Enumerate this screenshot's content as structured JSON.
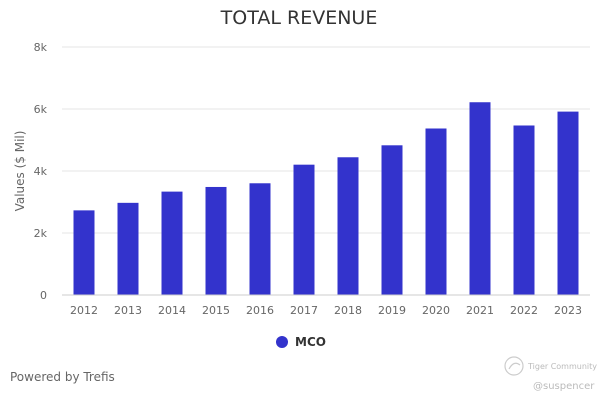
{
  "chart_data": {
    "type": "bar",
    "title": "TOTAL REVENUE",
    "xlabel": "",
    "ylabel": "Values ($ Mil)",
    "categories": [
      "2012",
      "2013",
      "2014",
      "2015",
      "2016",
      "2017",
      "2018",
      "2019",
      "2020",
      "2021",
      "2022",
      "2023"
    ],
    "series": [
      {
        "name": "MCO",
        "values": [
          2730,
          2973,
          3335,
          3485,
          3604,
          4204,
          4443,
          4829,
          5371,
          6218,
          5468,
          5916
        ],
        "color": "#3333cc"
      }
    ],
    "ylim": [
      0,
      8000
    ],
    "yticks": [
      0,
      2000,
      4000,
      6000,
      8000
    ],
    "ytick_labels": [
      "0",
      "2k",
      "4k",
      "6k",
      "8k"
    ],
    "grid": true,
    "legend_position": "bottom"
  },
  "footer": {
    "powered_by": "Powered by Trefis"
  },
  "watermark": {
    "brand": "Tiger Community",
    "handle": "@suspencer"
  }
}
